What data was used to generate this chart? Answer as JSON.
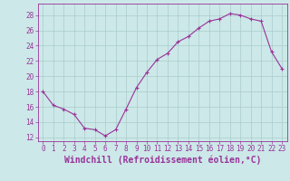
{
  "x": [
    0,
    1,
    2,
    3,
    4,
    5,
    6,
    7,
    8,
    9,
    10,
    11,
    12,
    13,
    14,
    15,
    16,
    17,
    18,
    19,
    20,
    21,
    22,
    23
  ],
  "y": [
    18,
    16.2,
    15.7,
    15.0,
    13.2,
    13.0,
    12.2,
    13.0,
    15.7,
    18.5,
    20.5,
    22.2,
    23.0,
    24.5,
    25.2,
    26.3,
    27.2,
    27.5,
    28.2,
    28.0,
    27.5,
    27.2,
    23.2,
    21.0
  ],
  "line_color": "#993399",
  "marker": "+",
  "bg_color": "#cce8e8",
  "grid_color": "#aacccc",
  "xlabel": "Windchill (Refroidissement éolien,°C)",
  "xlim": [
    -0.5,
    23.5
  ],
  "ylim": [
    11.5,
    29.5
  ],
  "yticks": [
    12,
    14,
    16,
    18,
    20,
    22,
    24,
    26,
    28
  ],
  "xticks": [
    0,
    1,
    2,
    3,
    4,
    5,
    6,
    7,
    8,
    9,
    10,
    11,
    12,
    13,
    14,
    15,
    16,
    17,
    18,
    19,
    20,
    21,
    22,
    23
  ],
  "tick_label_fontsize": 5.5,
  "xlabel_fontsize": 7.0,
  "axis_color": "#993399"
}
